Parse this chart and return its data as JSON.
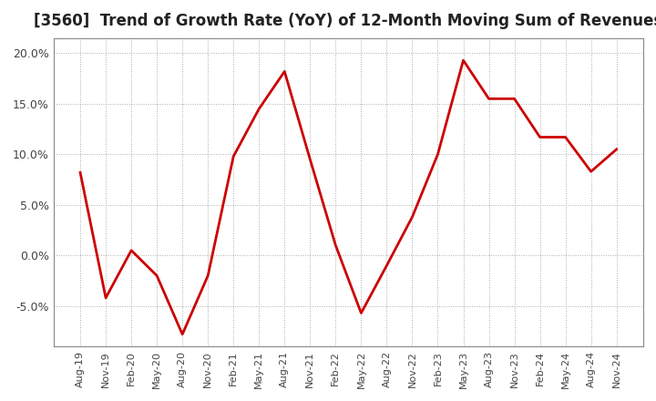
{
  "title": "[3560]  Trend of Growth Rate (YoY) of 12-Month Moving Sum of Revenues",
  "title_fontsize": 12,
  "ylim": [
    -0.09,
    0.215
  ],
  "yticks": [
    -0.05,
    0.0,
    0.05,
    0.1,
    0.15,
    0.2
  ],
  "ytick_labels": [
    "-5.0%",
    "0.0%",
    "5.0%",
    "10.0%",
    "15.0%",
    "20.0%"
  ],
  "line_color": "#cc0000",
  "background_color": "#ffffff",
  "grid_color": "#aaaaaa",
  "dates": [
    "Aug-19",
    "Nov-19",
    "Feb-20",
    "May-20",
    "Aug-20",
    "Nov-20",
    "Feb-21",
    "May-21",
    "Aug-21",
    "Nov-21",
    "Feb-22",
    "May-22",
    "Aug-22",
    "Nov-22",
    "Feb-23",
    "May-23",
    "Aug-23",
    "Nov-23",
    "Feb-24",
    "May-24",
    "Aug-24",
    "Nov-24"
  ],
  "values": [
    0.082,
    -0.042,
    0.005,
    -0.02,
    -0.078,
    -0.02,
    0.098,
    0.145,
    0.182,
    0.095,
    0.01,
    -0.057,
    -0.01,
    0.038,
    0.1,
    0.193,
    0.155,
    0.155,
    0.117,
    0.117,
    0.083,
    0.105
  ]
}
